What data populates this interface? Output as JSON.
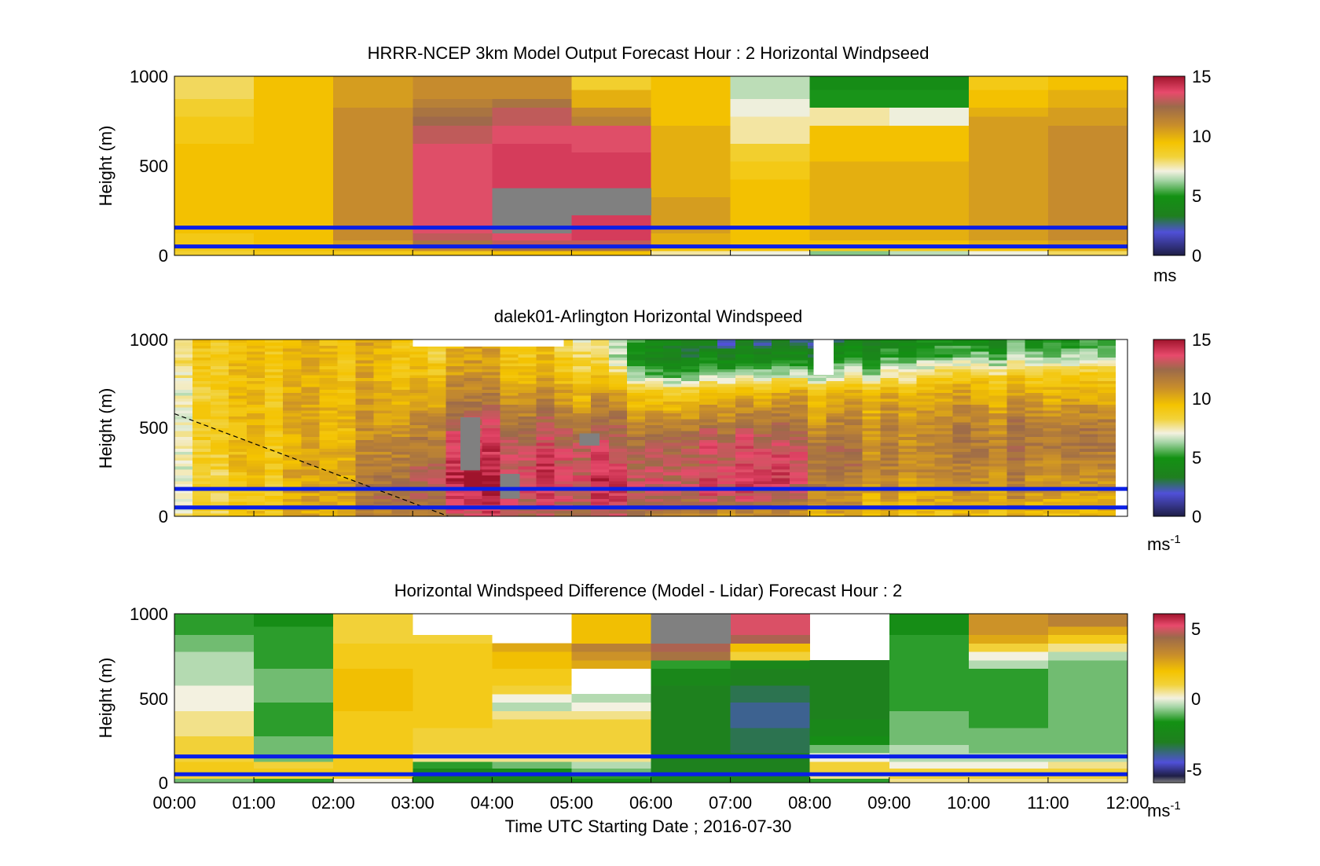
{
  "figure": {
    "x_ticks": [
      "00:00",
      "01:00",
      "02:00",
      "03:00",
      "04:00",
      "05:00",
      "06:00",
      "07:00",
      "08:00",
      "09:00",
      "10:00",
      "11:00",
      "12:00"
    ],
    "xlabel": "Time UTC  Starting Date ; 2016-07-30"
  },
  "colors": {
    "lidar_band": "#0a1fe6",
    "missing": "#808080",
    "axis": "#000000"
  },
  "chart_data": [
    {
      "type": "heatmap",
      "title": "HRRR-NCEP 3km Model Output   Forecast Hour : 2 Horizontal Windpseed",
      "ylabel": "Height (m)",
      "y_ticks": [
        "0",
        "500",
        "1000"
      ],
      "ylim": [
        0,
        1000
      ],
      "xlim": [
        0,
        12
      ],
      "colorbar": {
        "ticks": [
          "0",
          "5",
          "10",
          "15"
        ],
        "range": [
          0,
          15
        ],
        "units": "ms",
        "units_sup": ""
      },
      "overlay_lines_m": [
        50,
        155
      ],
      "rows_m": [
        10,
        40,
        70,
        100,
        150,
        200,
        250,
        300,
        350,
        400,
        450,
        500,
        550,
        600,
        650,
        700,
        750,
        800,
        850,
        900,
        950,
        1000
      ],
      "columns": [
        [
          8.5,
          9,
          9,
          9,
          9.5,
          9.5,
          9.5,
          9.5,
          9.5,
          9.5,
          9.5,
          9.5,
          9.5,
          9.5,
          9,
          9,
          9,
          8.5,
          8.5,
          8,
          8,
          8
        ],
        [
          9,
          9.5,
          9.5,
          9.5,
          9.5,
          9.5,
          9.5,
          9.5,
          9.5,
          9.5,
          9.5,
          9.5,
          9.5,
          9.5,
          9.5,
          9.5,
          9.5,
          9.5,
          9.5,
          9.5,
          9.5,
          9.5
        ],
        [
          9,
          10,
          10.5,
          11,
          11,
          11,
          11,
          11,
          11,
          11,
          11,
          11,
          11,
          11,
          11,
          11,
          11,
          11,
          10.5,
          10.5,
          10.5,
          10.5
        ],
        [
          9,
          11,
          12,
          13,
          13.5,
          13.5,
          13.5,
          13.5,
          13.5,
          13.5,
          13.5,
          13.5,
          13.5,
          13.5,
          13,
          13,
          12.5,
          12,
          11.5,
          11,
          11,
          11
        ],
        [
          9.5,
          12,
          13,
          13.5,
          null,
          null,
          null,
          null,
          null,
          14,
          14,
          14,
          14,
          14,
          13.5,
          13.5,
          13,
          13,
          12,
          11,
          11,
          11
        ],
        [
          9.5,
          12,
          13,
          14,
          14,
          14,
          null,
          null,
          null,
          14,
          14,
          14,
          14,
          13.5,
          13.5,
          13.5,
          11.5,
          11,
          10,
          10,
          8.5,
          8.5
        ],
        [
          7.5,
          9.5,
          10,
          10,
          10.5,
          10.5,
          10.5,
          10.5,
          10,
          10,
          10,
          10,
          10,
          10,
          10,
          10,
          9.5,
          9.5,
          9.5,
          9.5,
          9.5,
          9.5
        ],
        [
          7,
          9.5,
          9.5,
          9.5,
          9.5,
          9.5,
          9.5,
          9.5,
          9.5,
          9.5,
          9,
          9,
          8.5,
          8.5,
          7.5,
          7.5,
          7.5,
          7,
          7,
          6.5,
          6.5,
          6.5
        ],
        [
          6,
          9,
          9.5,
          10,
          10,
          10,
          10,
          10,
          10,
          10,
          10,
          10,
          9.5,
          9.5,
          9.5,
          9.5,
          7.5,
          7.5,
          5,
          5,
          4.5,
          4.5
        ],
        [
          6.5,
          9,
          9.5,
          10,
          10,
          10,
          10,
          10,
          10,
          10,
          10,
          10,
          9.5,
          9.5,
          9.5,
          9.5,
          7,
          7,
          5,
          5,
          4.5,
          4.5
        ],
        [
          7,
          9.5,
          10,
          10.5,
          10.5,
          10.5,
          10.5,
          10.5,
          10.5,
          10.5,
          10.5,
          10.5,
          10.5,
          10.5,
          10.5,
          10.5,
          10.5,
          10,
          9.5,
          9.5,
          9,
          9
        ],
        [
          8,
          10,
          10.5,
          11,
          11,
          11,
          11,
          11,
          11,
          11,
          11,
          11,
          11,
          11,
          11,
          11,
          10.5,
          10.5,
          10,
          10,
          9.5,
          9.5
        ]
      ]
    },
    {
      "type": "heatmap",
      "title": "dalek01-Arlington  Horizontal Windspeed",
      "ylabel": "Height (m)",
      "y_ticks": [
        "0",
        "500",
        "1000"
      ],
      "ylim": [
        0,
        1000
      ],
      "xlim": [
        0,
        12
      ],
      "colorbar": {
        "ticks": [
          "0",
          "5",
          "10",
          "15"
        ],
        "range": [
          0,
          15
        ],
        "units": "ms",
        "units_sup": "-1"
      },
      "overlay_lines_m": [
        50,
        155
      ],
      "dashed_line": {
        "x": [
          0,
          3.45
        ],
        "y": [
          580,
          0
        ]
      },
      "noisy": true,
      "cols_per_hour": 4,
      "keyframes_x": [
        0,
        0.6,
        1.5,
        2.2,
        2.6,
        3.0,
        3.5,
        4.0,
        4.8,
        5.2,
        5.6,
        6.0,
        6.8,
        7.5,
        8.5,
        9.5,
        10.5,
        11.5,
        12
      ],
      "keyframes_y_m": [
        0,
        100,
        200,
        300,
        400,
        500,
        600,
        700,
        800,
        900,
        1000
      ],
      "keyframes": [
        [
          8,
          7.5,
          7.5,
          7.5,
          7.5,
          7.5,
          7.5,
          7.5,
          8,
          8.5,
          8.5
        ],
        [
          9,
          9,
          9,
          9.5,
          9.5,
          9.5,
          9.5,
          9.5,
          9.5,
          9.5,
          9.5
        ],
        [
          9.5,
          9.5,
          9.5,
          9.5,
          9.5,
          9.5,
          9.5,
          9.5,
          9.5,
          9.5,
          9.5
        ],
        [
          10,
          10.5,
          10.5,
          10.5,
          10,
          10,
          10,
          10,
          9.5,
          9.5,
          9.5
        ],
        [
          11,
          12,
          12,
          11.5,
          11,
          10.5,
          10.5,
          10,
          9.5,
          9.5,
          9.5
        ],
        [
          11.5,
          13,
          13,
          12.5,
          12,
          11.5,
          11,
          10.5,
          10,
          9.5,
          9.5
        ],
        [
          12.5,
          13.5,
          14,
          13.5,
          13,
          12.5,
          11.5,
          11,
          10,
          9.5,
          9
        ],
        [
          13,
          14,
          14.5,
          14,
          13.5,
          13,
          12,
          11,
          10.5,
          10,
          10
        ],
        [
          13,
          14,
          14.5,
          14,
          13.5,
          13,
          12,
          11,
          10,
          9.5,
          9
        ],
        [
          12.5,
          13.5,
          14,
          13.5,
          13.5,
          12,
          11,
          10,
          9,
          8.5,
          7.5
        ],
        [
          12.5,
          13.5,
          13.5,
          13,
          12.5,
          12,
          11,
          10,
          8,
          6,
          6
        ],
        [
          12,
          13,
          13.5,
          13,
          13,
          12,
          10.5,
          9,
          6,
          4,
          5
        ],
        [
          10.5,
          13,
          13.5,
          13,
          13,
          12,
          10.5,
          9.5,
          6,
          4,
          2.5
        ],
        [
          10,
          12.5,
          13.5,
          13.5,
          13,
          12,
          10.5,
          9.5,
          6,
          3.5,
          2
        ],
        [
          9.5,
          10.5,
          11,
          11.5,
          11.5,
          11,
          10.5,
          9.5,
          6.5,
          4.5,
          3
        ],
        [
          9,
          10,
          10.5,
          11,
          11,
          11,
          10.5,
          10,
          8,
          5.5,
          4.5
        ],
        [
          9.5,
          10.5,
          11,
          11.5,
          12,
          11.5,
          11,
          10,
          9,
          6,
          4.5
        ],
        [
          9.5,
          10.5,
          11,
          11.5,
          12,
          12,
          11,
          10,
          9,
          6.5,
          5
        ],
        [
          9.5,
          10.5,
          11,
          11.5,
          12,
          12,
          11,
          10,
          9,
          6.5,
          5
        ]
      ],
      "missing_blocks": [
        {
          "x0": 3.6,
          "x1": 3.85,
          "y0": 260,
          "y1": 560
        },
        {
          "x0": 5.1,
          "x1": 5.35,
          "y0": 400,
          "y1": 470
        },
        {
          "x0": 4.1,
          "x1": 4.35,
          "y0": 100,
          "y1": 240
        }
      ],
      "blank_blocks": [
        {
          "x0": 3.0,
          "x1": 4.9,
          "y0": 960,
          "y1": 1000
        },
        {
          "x0": 8.05,
          "x1": 8.3,
          "y0": 800,
          "y1": 1000
        }
      ]
    },
    {
      "type": "heatmap",
      "title": "Horizontal Windspeed Difference (Model - Lidar) Forecast Hour : 2",
      "ylabel": "Height (m)",
      "y_ticks": [
        "0",
        "500",
        "1000"
      ],
      "ylim": [
        0,
        1000
      ],
      "xlim": [
        0,
        12
      ],
      "colorbar": {
        "ticks": [
          "-5",
          "0",
          "5"
        ],
        "range": [
          -6,
          6
        ],
        "units": "ms",
        "units_sup": "-1"
      },
      "overlay_lines_m": [
        50,
        155
      ],
      "rows_m": [
        10,
        40,
        70,
        100,
        150,
        200,
        250,
        300,
        350,
        400,
        450,
        500,
        550,
        600,
        650,
        700,
        750,
        800,
        850,
        900,
        950,
        1000
      ],
      "columns": [
        [
          -1,
          1,
          1.5,
          1.5,
          1,
          1,
          1,
          0.5,
          0.5,
          0.5,
          0,
          0,
          0,
          -0.5,
          -0.5,
          -0.5,
          -0.5,
          -1,
          -1,
          -1.5,
          -1.5,
          -1.5
        ],
        [
          -1.5,
          1,
          1.5,
          1,
          -1,
          -1,
          -1,
          -1.5,
          -1.5,
          -1.5,
          -1.5,
          -1,
          -1,
          -1,
          -1,
          -1.5,
          -1.5,
          -1.5,
          -1.5,
          -1.5,
          -2,
          -2
        ],
        [
          0,
          1.5,
          1.5,
          1.5,
          1.5,
          1.5,
          1.5,
          1.5,
          1.5,
          1.5,
          2,
          2,
          2,
          2,
          2,
          1.5,
          1.5,
          1.5,
          1,
          1,
          1,
          1
        ],
        [
          -2.5,
          -3,
          -2.5,
          -1.5,
          0.5,
          1,
          1,
          1,
          1.5,
          1.5,
          1.5,
          1.5,
          1.5,
          1.5,
          1.5,
          1.5,
          1.5,
          1.5,
          1,
          null,
          null,
          null
        ],
        [
          -3,
          -2.5,
          -2,
          -1,
          0.5,
          1,
          1,
          1,
          1,
          0.5,
          -0.5,
          0,
          1,
          1.5,
          1.5,
          2,
          2,
          2.5,
          null,
          null,
          null,
          null
        ],
        [
          -2,
          -1.5,
          -1,
          -0.5,
          0.5,
          1,
          1,
          1,
          1,
          0.5,
          0,
          -0.5,
          null,
          null,
          null,
          2.5,
          3,
          3.5,
          2,
          2,
          2,
          2
        ],
        [
          -3,
          -2.5,
          -3,
          -3,
          -3,
          -3,
          -3,
          -3,
          -3,
          -3,
          -3,
          -3,
          -3,
          -2.5,
          -2.5,
          -1.5,
          4,
          4.5,
          null,
          null,
          null,
          null
        ],
        [
          -3,
          -3,
          -3,
          -3,
          -3,
          -3.5,
          -3.5,
          -3.5,
          -4,
          -4,
          -4,
          -3.5,
          -3.5,
          -3,
          -3,
          -2.5,
          1,
          2,
          4.5,
          5,
          5,
          5
        ],
        [
          -1.5,
          0.5,
          1,
          1,
          0,
          -1,
          -2,
          -2.5,
          -2.5,
          -3,
          -3,
          -3,
          -3,
          -3,
          -3,
          -3,
          null,
          null,
          null,
          null,
          null,
          null
        ],
        [
          0.5,
          1,
          1,
          0,
          -0.5,
          -0.5,
          -1,
          -1,
          -1,
          -1,
          -1.5,
          -1.5,
          -1.5,
          -1.5,
          -1.5,
          -1.5,
          -1.5,
          -1.5,
          -1.5,
          -2,
          -2,
          -2
        ],
        [
          0.5,
          1,
          1,
          0,
          -0.5,
          -1,
          -1,
          -1,
          -1.5,
          -1.5,
          -1.5,
          -1.5,
          -1.5,
          -1.5,
          -1.5,
          -0.5,
          0,
          1,
          2.5,
          3,
          3,
          3
        ],
        [
          0.5,
          1,
          1,
          0.5,
          -0.5,
          -1,
          -1,
          -1,
          -1,
          -1,
          -1,
          -1,
          -1,
          -1,
          -1,
          -1,
          -0.5,
          0.5,
          1.5,
          2.5,
          3.5,
          3.5
        ]
      ]
    }
  ]
}
